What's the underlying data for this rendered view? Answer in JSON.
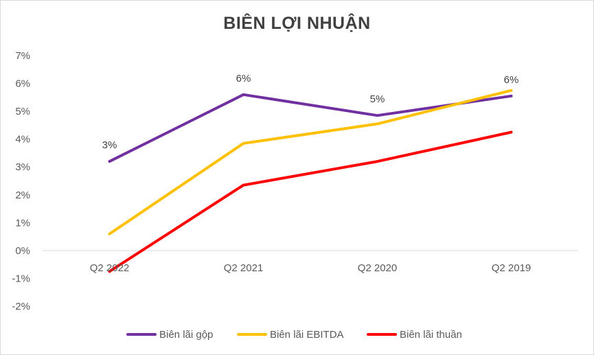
{
  "chart_data": {
    "type": "line",
    "title": "BIÊN LỢI NHUẬN",
    "xlabel": "",
    "ylabel": "",
    "categories": [
      "Q2 2022",
      "Q2 2021",
      "Q2 2020",
      "Q2 2019"
    ],
    "y_ticks": [
      "7%",
      "6%",
      "5%",
      "4%",
      "3%",
      "2%",
      "1%",
      "0%",
      "-1%",
      "-2%"
    ],
    "ylim": [
      -2,
      7
    ],
    "grid": false,
    "legend_position": "bottom",
    "series": [
      {
        "name": "Biên lãi gộp",
        "color": "#7030a0",
        "values": [
          3.2,
          5.6,
          4.85,
          5.55
        ],
        "data_labels": [
          "3%",
          "6%",
          "5%",
          "6%"
        ]
      },
      {
        "name": "Biên lãi EBITDA",
        "color": "#ffc000",
        "values": [
          0.6,
          3.85,
          4.55,
          5.75
        ]
      },
      {
        "name": "Biên lãi thuần",
        "color": "#ff0000",
        "values": [
          -0.75,
          2.35,
          3.2,
          4.25
        ]
      }
    ]
  }
}
